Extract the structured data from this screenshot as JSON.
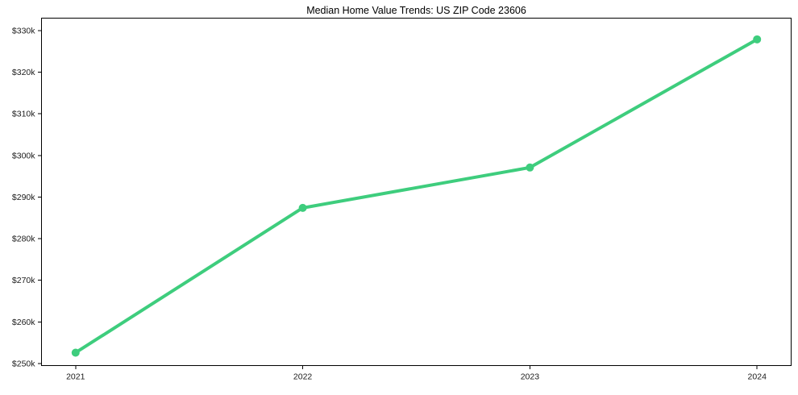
{
  "chart_data": {
    "type": "line",
    "title": "Median Home Value Trends: US ZIP Code 23606",
    "categories": [
      "2021",
      "2022",
      "2023",
      "2024"
    ],
    "x_values": [
      2021,
      2022,
      2023,
      2024
    ],
    "series": [
      {
        "name": "Median Home Value",
        "values": [
          252600,
          287400,
          297100,
          327900
        ]
      }
    ],
    "xlabel": "",
    "ylabel": "",
    "xlim": [
      2020.85,
      2024.15
    ],
    "ylim": [
      249500,
      333000
    ],
    "ytick_values": [
      250000,
      260000,
      270000,
      280000,
      290000,
      300000,
      310000,
      320000,
      330000
    ],
    "ytick_labels": [
      "$250k",
      "$260k",
      "$270k",
      "$280k",
      "$290k",
      "$300k",
      "$310k",
      "$320k",
      "$330k"
    ],
    "grid": false,
    "legend_position": "none",
    "colors": {
      "line": "#3ecd7d",
      "marker": "#3ecd7d",
      "spine": "#000000",
      "tick_label": "#1a1a1a",
      "background": "#ffffff"
    }
  }
}
